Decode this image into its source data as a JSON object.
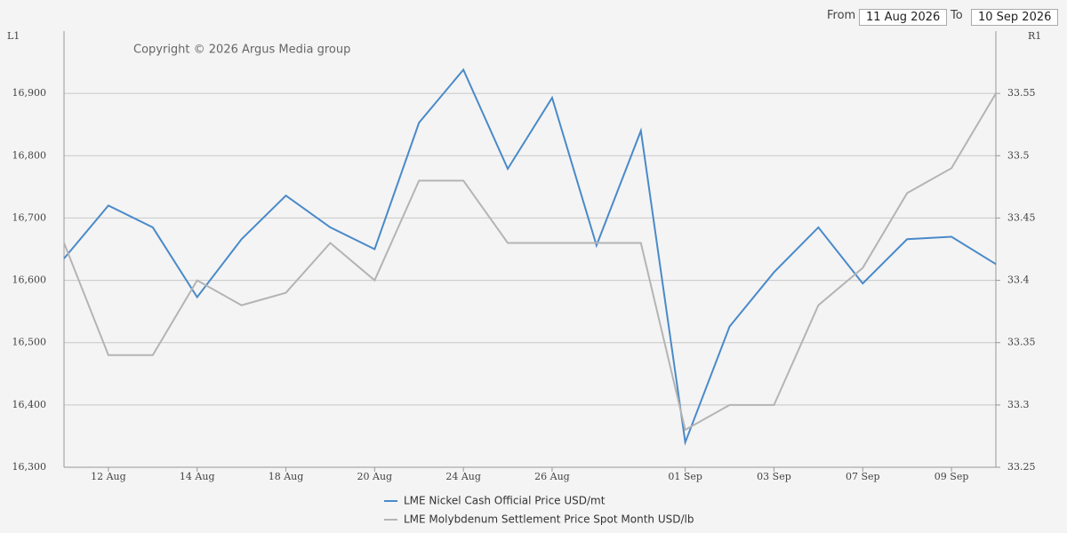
{
  "controls": {
    "from_label": "From",
    "from_value": "11 Aug 2026",
    "to_label": "To",
    "to_value": "10 Sep 2026"
  },
  "chart_data": {
    "type": "line",
    "copyright": "Copyright © 2026 Argus Media group",
    "y_axis_label": "L1",
    "y2_axis_label": "R1",
    "categories": [
      null,
      "12 Aug",
      null,
      "14 Aug",
      null,
      "18 Aug",
      null,
      "20 Aug",
      null,
      "24 Aug",
      null,
      "26 Aug",
      null,
      null,
      "01 Sep",
      null,
      "03 Sep",
      null,
      "07 Sep",
      null,
      "09 Sep",
      null
    ],
    "ylim": [
      16300,
      17000
    ],
    "yticks": [
      {
        "value": 16300,
        "label": "16,300"
      },
      {
        "value": 16400,
        "label": "16,400"
      },
      {
        "value": 16500,
        "label": "16,500"
      },
      {
        "value": 16600,
        "label": "16,600"
      },
      {
        "value": 16700,
        "label": "16,700"
      },
      {
        "value": 16800,
        "label": "16,800"
      },
      {
        "value": 16900,
        "label": "16,900"
      }
    ],
    "y2lim": [
      33.25,
      33.6
    ],
    "y2ticks": [
      33.25,
      33.3,
      33.35,
      33.4,
      33.45,
      33.5,
      33.55
    ],
    "grid": true,
    "legend": "bottom",
    "series": [
      {
        "name": "LME Nickel Cash Official Price USD/mt",
        "color": "#4a8ac9",
        "values": [
          16635,
          16720,
          16685,
          16573,
          16666,
          16736,
          16685,
          16650,
          16853,
          16938,
          16779,
          16893,
          16656,
          16840,
          16340,
          16526,
          16613,
          16685,
          16595,
          16666,
          16670,
          16626
        ]
      },
      {
        "name": "LME Molybdenum Settlement Price Spot Month USD/lb",
        "color": "#b4b4b4",
        "axis": "y2",
        "values": [
          33.43,
          33.34,
          33.34,
          33.4,
          33.38,
          33.39,
          33.43,
          33.4,
          33.48,
          33.48,
          33.43,
          33.43,
          33.43,
          33.43,
          33.28,
          33.3,
          33.3,
          33.38,
          33.41,
          33.47,
          33.49,
          33.55
        ]
      }
    ]
  }
}
